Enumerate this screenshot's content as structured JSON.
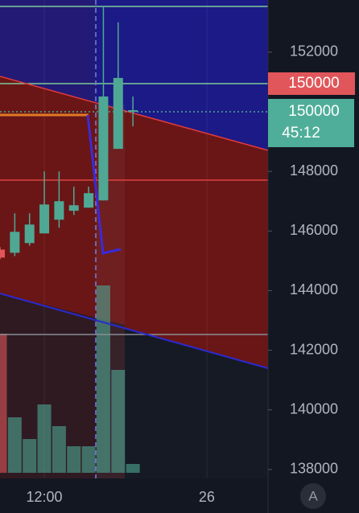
{
  "chart_data": {
    "type": "candlestick",
    "categories": [
      null,
      null,
      null,
      "12:00",
      null,
      null,
      null,
      null,
      null,
      null,
      null,
      null,
      null,
      null,
      "26"
    ],
    "open": [
      145378,
      145270,
      145595,
      145920,
      146380,
      146680,
      146784,
      147027,
      148757,
      150000,
      null,
      null,
      null,
      null,
      null
    ],
    "high": [
      145460,
      146595,
      146595,
      148000,
      148000,
      147486,
      147486,
      153540,
      153000,
      150513,
      null,
      null,
      null,
      null,
      null
    ],
    "low": [
      145050,
      145160,
      145510,
      145920,
      146110,
      146540,
      146784,
      147027,
      148757,
      149513,
      null,
      null,
      null,
      null,
      null
    ],
    "close": [
      145108,
      145973,
      146216,
      146890,
      147000,
      146865,
      147270,
      150513,
      151135,
      150054,
      null,
      null,
      null,
      null,
      null
    ],
    "volume": [
      173,
      69,
      42,
      85,
      58,
      33,
      33,
      233,
      128,
      11,
      null,
      null,
      null,
      null,
      null
    ],
    "volume_lim": [
      0,
      250
    ],
    "up_color": "#4fa894",
    "down_color": "#e0565a",
    "ylim": [
      137700,
      153750
    ],
    "yticks": [
      138000,
      140000,
      142000,
      144000,
      146000,
      148000,
      150000,
      152000
    ],
    "current_price": 150000,
    "countdown": "45:12",
    "alert_price": 150000,
    "scale_mode": "A"
  }
}
